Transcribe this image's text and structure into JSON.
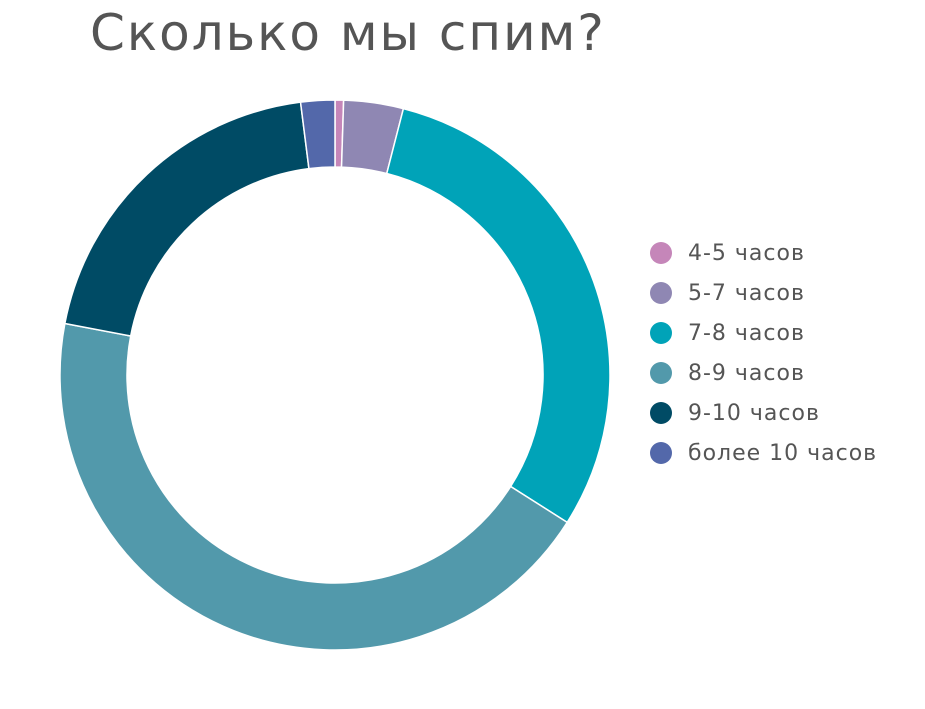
{
  "chart_data": {
    "type": "pie",
    "style": "donut",
    "title": "Сколько мы спим?",
    "legend_position": "right",
    "categories": [
      "4-5 часов",
      "5-7 часов",
      "7-8 часов",
      "8-9 часов",
      "9-10 часов",
      "более 10 часов"
    ],
    "values": [
      0.5,
      3.5,
      30,
      44,
      20,
      2
    ],
    "colors": [
      "#c586b9",
      "#8f87b3",
      "#00a3b8",
      "#5299ab",
      "#004b65",
      "#5368aa"
    ]
  }
}
